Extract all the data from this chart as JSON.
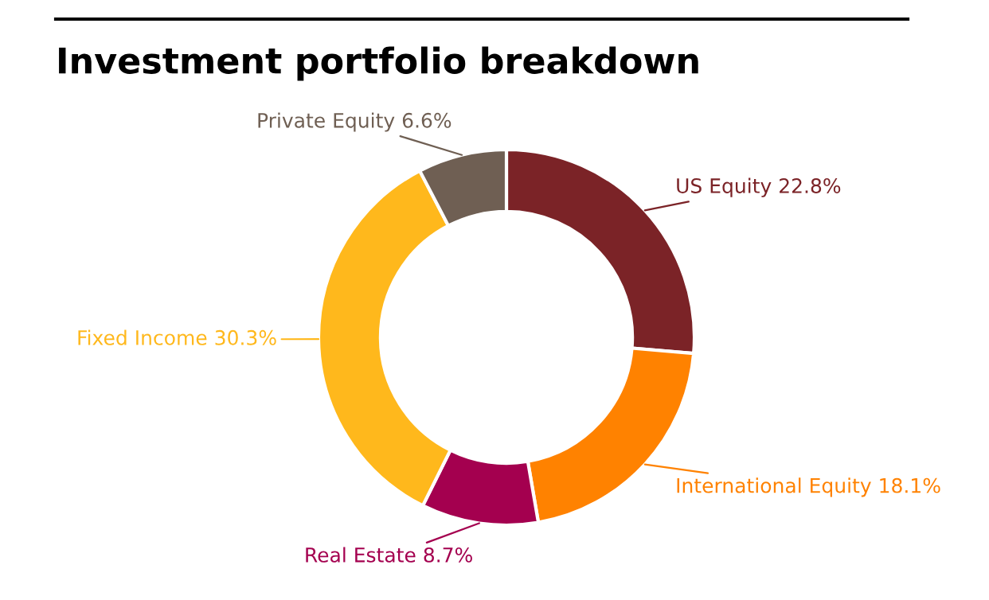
{
  "chart_data": {
    "type": "donut",
    "title": "Investment portfolio breakdown",
    "categories": [
      "US Equity",
      "International Equity",
      "Real Estate",
      "Fixed Income",
      "Private Equity"
    ],
    "values": [
      22.8,
      18.1,
      8.7,
      30.3,
      6.6
    ],
    "value_labels": [
      "22.8%",
      "18.1%",
      "8.7%",
      "30.3%",
      "6.6%"
    ],
    "colors": [
      "#7b2327",
      "#ff8200",
      "#a4004f",
      "#ffb81c",
      "#6f5f53"
    ],
    "legend": false
  }
}
